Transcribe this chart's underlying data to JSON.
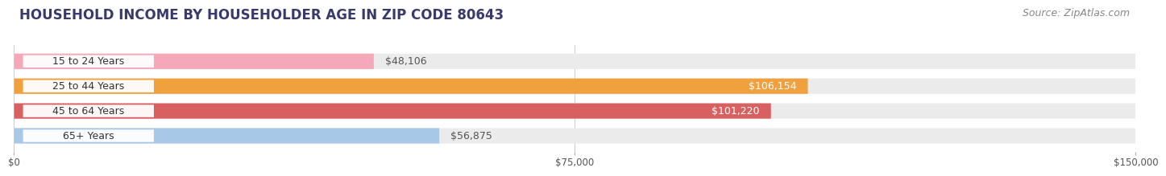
{
  "title": "HOUSEHOLD INCOME BY HOUSEHOLDER AGE IN ZIP CODE 80643",
  "source": "Source: ZipAtlas.com",
  "categories": [
    "15 to 24 Years",
    "25 to 44 Years",
    "45 to 64 Years",
    "65+ Years"
  ],
  "values": [
    48106,
    106154,
    101220,
    56875
  ],
  "bar_colors": [
    "#f5a8b8",
    "#f0a03c",
    "#d96060",
    "#a8c8e8"
  ],
  "bar_bg_color": "#ebebeb",
  "value_labels": [
    "$48,106",
    "$106,154",
    "$101,220",
    "$56,875"
  ],
  "label_inside": [
    false,
    true,
    true,
    false
  ],
  "label_color_inside": "#ffffff",
  "label_color_outside": "#555555",
  "xlim": [
    0,
    150000
  ],
  "xtick_labels": [
    "$0",
    "$75,000",
    "$150,000"
  ],
  "xtick_values": [
    0,
    75000,
    150000
  ],
  "title_color": "#3a3a6a",
  "source_color": "#888888",
  "title_fontsize": 12,
  "source_fontsize": 9,
  "bar_height": 0.62,
  "bg_color": "#ebebeb",
  "cat_label_bg": "#ffffff",
  "cat_label_color": "#333333",
  "cat_label_fontsize": 9,
  "value_fontsize": 9
}
